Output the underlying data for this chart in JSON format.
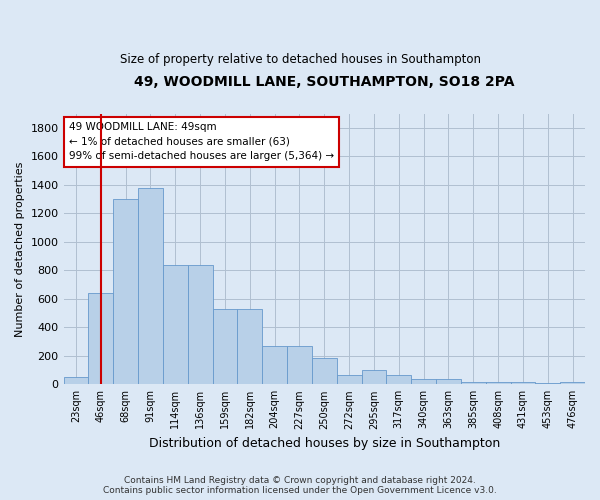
{
  "title1": "49, WOODMILL LANE, SOUTHAMPTON, SO18 2PA",
  "title2": "Size of property relative to detached houses in Southampton",
  "xlabel": "Distribution of detached houses by size in Southampton",
  "ylabel": "Number of detached properties",
  "categories": [
    "23sqm",
    "46sqm",
    "68sqm",
    "91sqm",
    "114sqm",
    "136sqm",
    "159sqm",
    "182sqm",
    "204sqm",
    "227sqm",
    "250sqm",
    "272sqm",
    "295sqm",
    "317sqm",
    "340sqm",
    "363sqm",
    "385sqm",
    "408sqm",
    "431sqm",
    "453sqm",
    "476sqm"
  ],
  "values": [
    50,
    640,
    1300,
    1380,
    840,
    840,
    530,
    530,
    270,
    270,
    185,
    65,
    100,
    65,
    35,
    35,
    15,
    15,
    15,
    10,
    15
  ],
  "bar_color": "#b8d0e8",
  "bar_edge_color": "#6699cc",
  "grid_color": "#b0bfd0",
  "background_color": "#dce8f5",
  "vline_x": 1,
  "vline_color": "#cc0000",
  "annotation_line1": "49 WOODMILL LANE: 49sqm",
  "annotation_line2": "← 1% of detached houses are smaller (63)",
  "annotation_line3": "99% of semi-detached houses are larger (5,364) →",
  "annotation_box_color": "#ffffff",
  "annotation_box_edge": "#cc0000",
  "ylim": [
    0,
    1900
  ],
  "yticks": [
    0,
    200,
    400,
    600,
    800,
    1000,
    1200,
    1400,
    1600,
    1800
  ],
  "footer1": "Contains HM Land Registry data © Crown copyright and database right 2024.",
  "footer2": "Contains public sector information licensed under the Open Government Licence v3.0."
}
